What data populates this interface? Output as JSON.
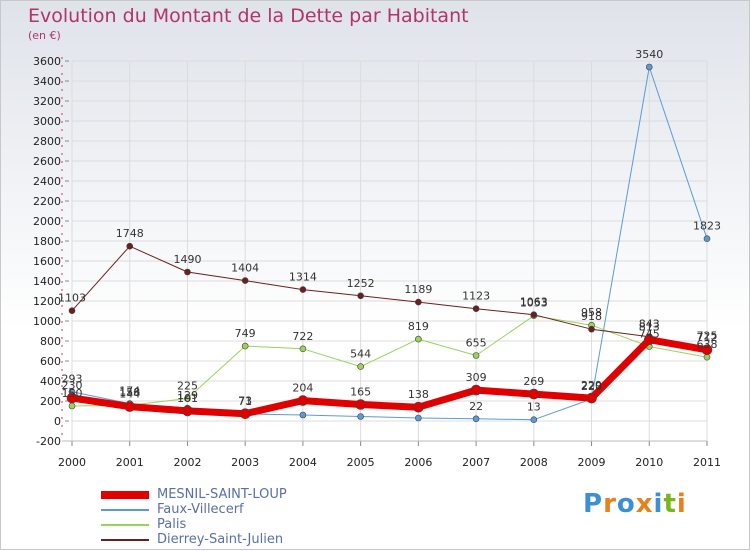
{
  "title": "Evolution du Montant de la Dette par Habitant",
  "subtitle": "(en €)",
  "logo": {
    "text": "Proxiti",
    "letter_colors": [
      "#3a8fd6",
      "#e6811c",
      "#3a8fd6",
      "#e6811c",
      "#3a8fd6",
      "#7ab51d",
      "#e6811c"
    ]
  },
  "chart_data": {
    "type": "line",
    "categories": [
      "2000",
      "2001",
      "2002",
      "2003",
      "2004",
      "2005",
      "2006",
      "2007",
      "2008",
      "2009",
      "2010",
      "2011"
    ],
    "ylim": [
      -200,
      3600
    ],
    "yticks": [
      -200,
      0,
      200,
      400,
      600,
      800,
      1000,
      1200,
      1400,
      1600,
      1800,
      2000,
      2200,
      2400,
      2600,
      2800,
      3000,
      3200,
      3400,
      3600
    ],
    "grid": true,
    "legend_position": "bottom-left",
    "series": [
      {
        "name": "MESNIL-SAINT-LOUP",
        "color": "#e00000",
        "width": 7,
        "values": [
          230,
          144,
          101,
          73,
          204,
          165,
          138,
          309,
          269,
          229,
          813,
          712
        ]
      },
      {
        "name": "Faux-Villecerf",
        "color": "#5b9bd5",
        "width": 1,
        "values": [
          293,
          174,
          129,
          71,
          60,
          45,
          30,
          22,
          13,
          220,
          3540,
          1823
        ]
      },
      {
        "name": "Palis",
        "color": "#99d35a",
        "width": 1,
        "values": [
          150,
          158,
          225,
          749,
          722,
          544,
          819,
          655,
          1053,
          958,
          745,
          638
        ]
      },
      {
        "name": "Dierrey-Saint-Julien",
        "color": "#6b1f1f",
        "width": 1,
        "values": [
          1103,
          1748,
          1490,
          1404,
          1314,
          1252,
          1189,
          1123,
          1063,
          918,
          843,
          725
        ]
      }
    ],
    "data_labels": [
      {
        "cat": 0,
        "text": "293",
        "value": 293
      },
      {
        "cat": 0,
        "text": "230",
        "value": 230
      },
      {
        "cat": 0,
        "text": "150",
        "value": 150
      },
      {
        "cat": 0,
        "text": "1103",
        "value": 1103
      },
      {
        "cat": 1,
        "text": "174",
        "value": 174
      },
      {
        "cat": 1,
        "text": "158",
        "value": 158
      },
      {
        "cat": 1,
        "text": "144",
        "value": 144
      },
      {
        "cat": 1,
        "text": "1748",
        "value": 1748
      },
      {
        "cat": 2,
        "text": "225",
        "value": 225
      },
      {
        "cat": 2,
        "text": "129",
        "value": 129
      },
      {
        "cat": 2,
        "text": "101",
        "value": 101
      },
      {
        "cat": 2,
        "text": "1490",
        "value": 1490
      },
      {
        "cat": 3,
        "text": "749",
        "value": 749
      },
      {
        "cat": 3,
        "text": "71",
        "value": 71
      },
      {
        "cat": 3,
        "text": "73",
        "value": 73
      },
      {
        "cat": 3,
        "text": "1404",
        "value": 1404
      },
      {
        "cat": 4,
        "text": "722",
        "value": 722
      },
      {
        "cat": 4,
        "text": "204",
        "value": 204
      },
      {
        "cat": 4,
        "text": "1314",
        "value": 1314
      },
      {
        "cat": 5,
        "text": "544",
        "value": 544
      },
      {
        "cat": 5,
        "text": "165",
        "value": 165
      },
      {
        "cat": 5,
        "text": "1252",
        "value": 1252
      },
      {
        "cat": 6,
        "text": "819",
        "value": 819
      },
      {
        "cat": 6,
        "text": "138",
        "value": 138
      },
      {
        "cat": 6,
        "text": "1189",
        "value": 1189
      },
      {
        "cat": 7,
        "text": "655",
        "value": 655
      },
      {
        "cat": 7,
        "text": "309",
        "value": 309
      },
      {
        "cat": 7,
        "text": "22",
        "value": 22
      },
      {
        "cat": 7,
        "text": "1123",
        "value": 1123
      },
      {
        "cat": 8,
        "text": "1063",
        "value": 1063
      },
      {
        "cat": 8,
        "text": "1053",
        "value": 1053
      },
      {
        "cat": 8,
        "text": "269",
        "value": 269
      },
      {
        "cat": 8,
        "text": "13",
        "value": 13
      },
      {
        "cat": 9,
        "text": "958",
        "value": 958
      },
      {
        "cat": 9,
        "text": "918",
        "value": 918
      },
      {
        "cat": 9,
        "text": "229",
        "value": 229
      },
      {
        "cat": 9,
        "text": "220",
        "value": 220
      },
      {
        "cat": 10,
        "text": "3540",
        "value": 3540
      },
      {
        "cat": 10,
        "text": "843",
        "value": 843
      },
      {
        "cat": 10,
        "text": "813",
        "value": 813
      },
      {
        "cat": 10,
        "text": "745",
        "value": 745
      },
      {
        "cat": 11,
        "text": "1823",
        "value": 1823
      },
      {
        "cat": 11,
        "text": "725",
        "value": 725
      },
      {
        "cat": 11,
        "text": "712",
        "value": 712
      },
      {
        "cat": 11,
        "text": "638",
        "value": 638
      }
    ]
  }
}
